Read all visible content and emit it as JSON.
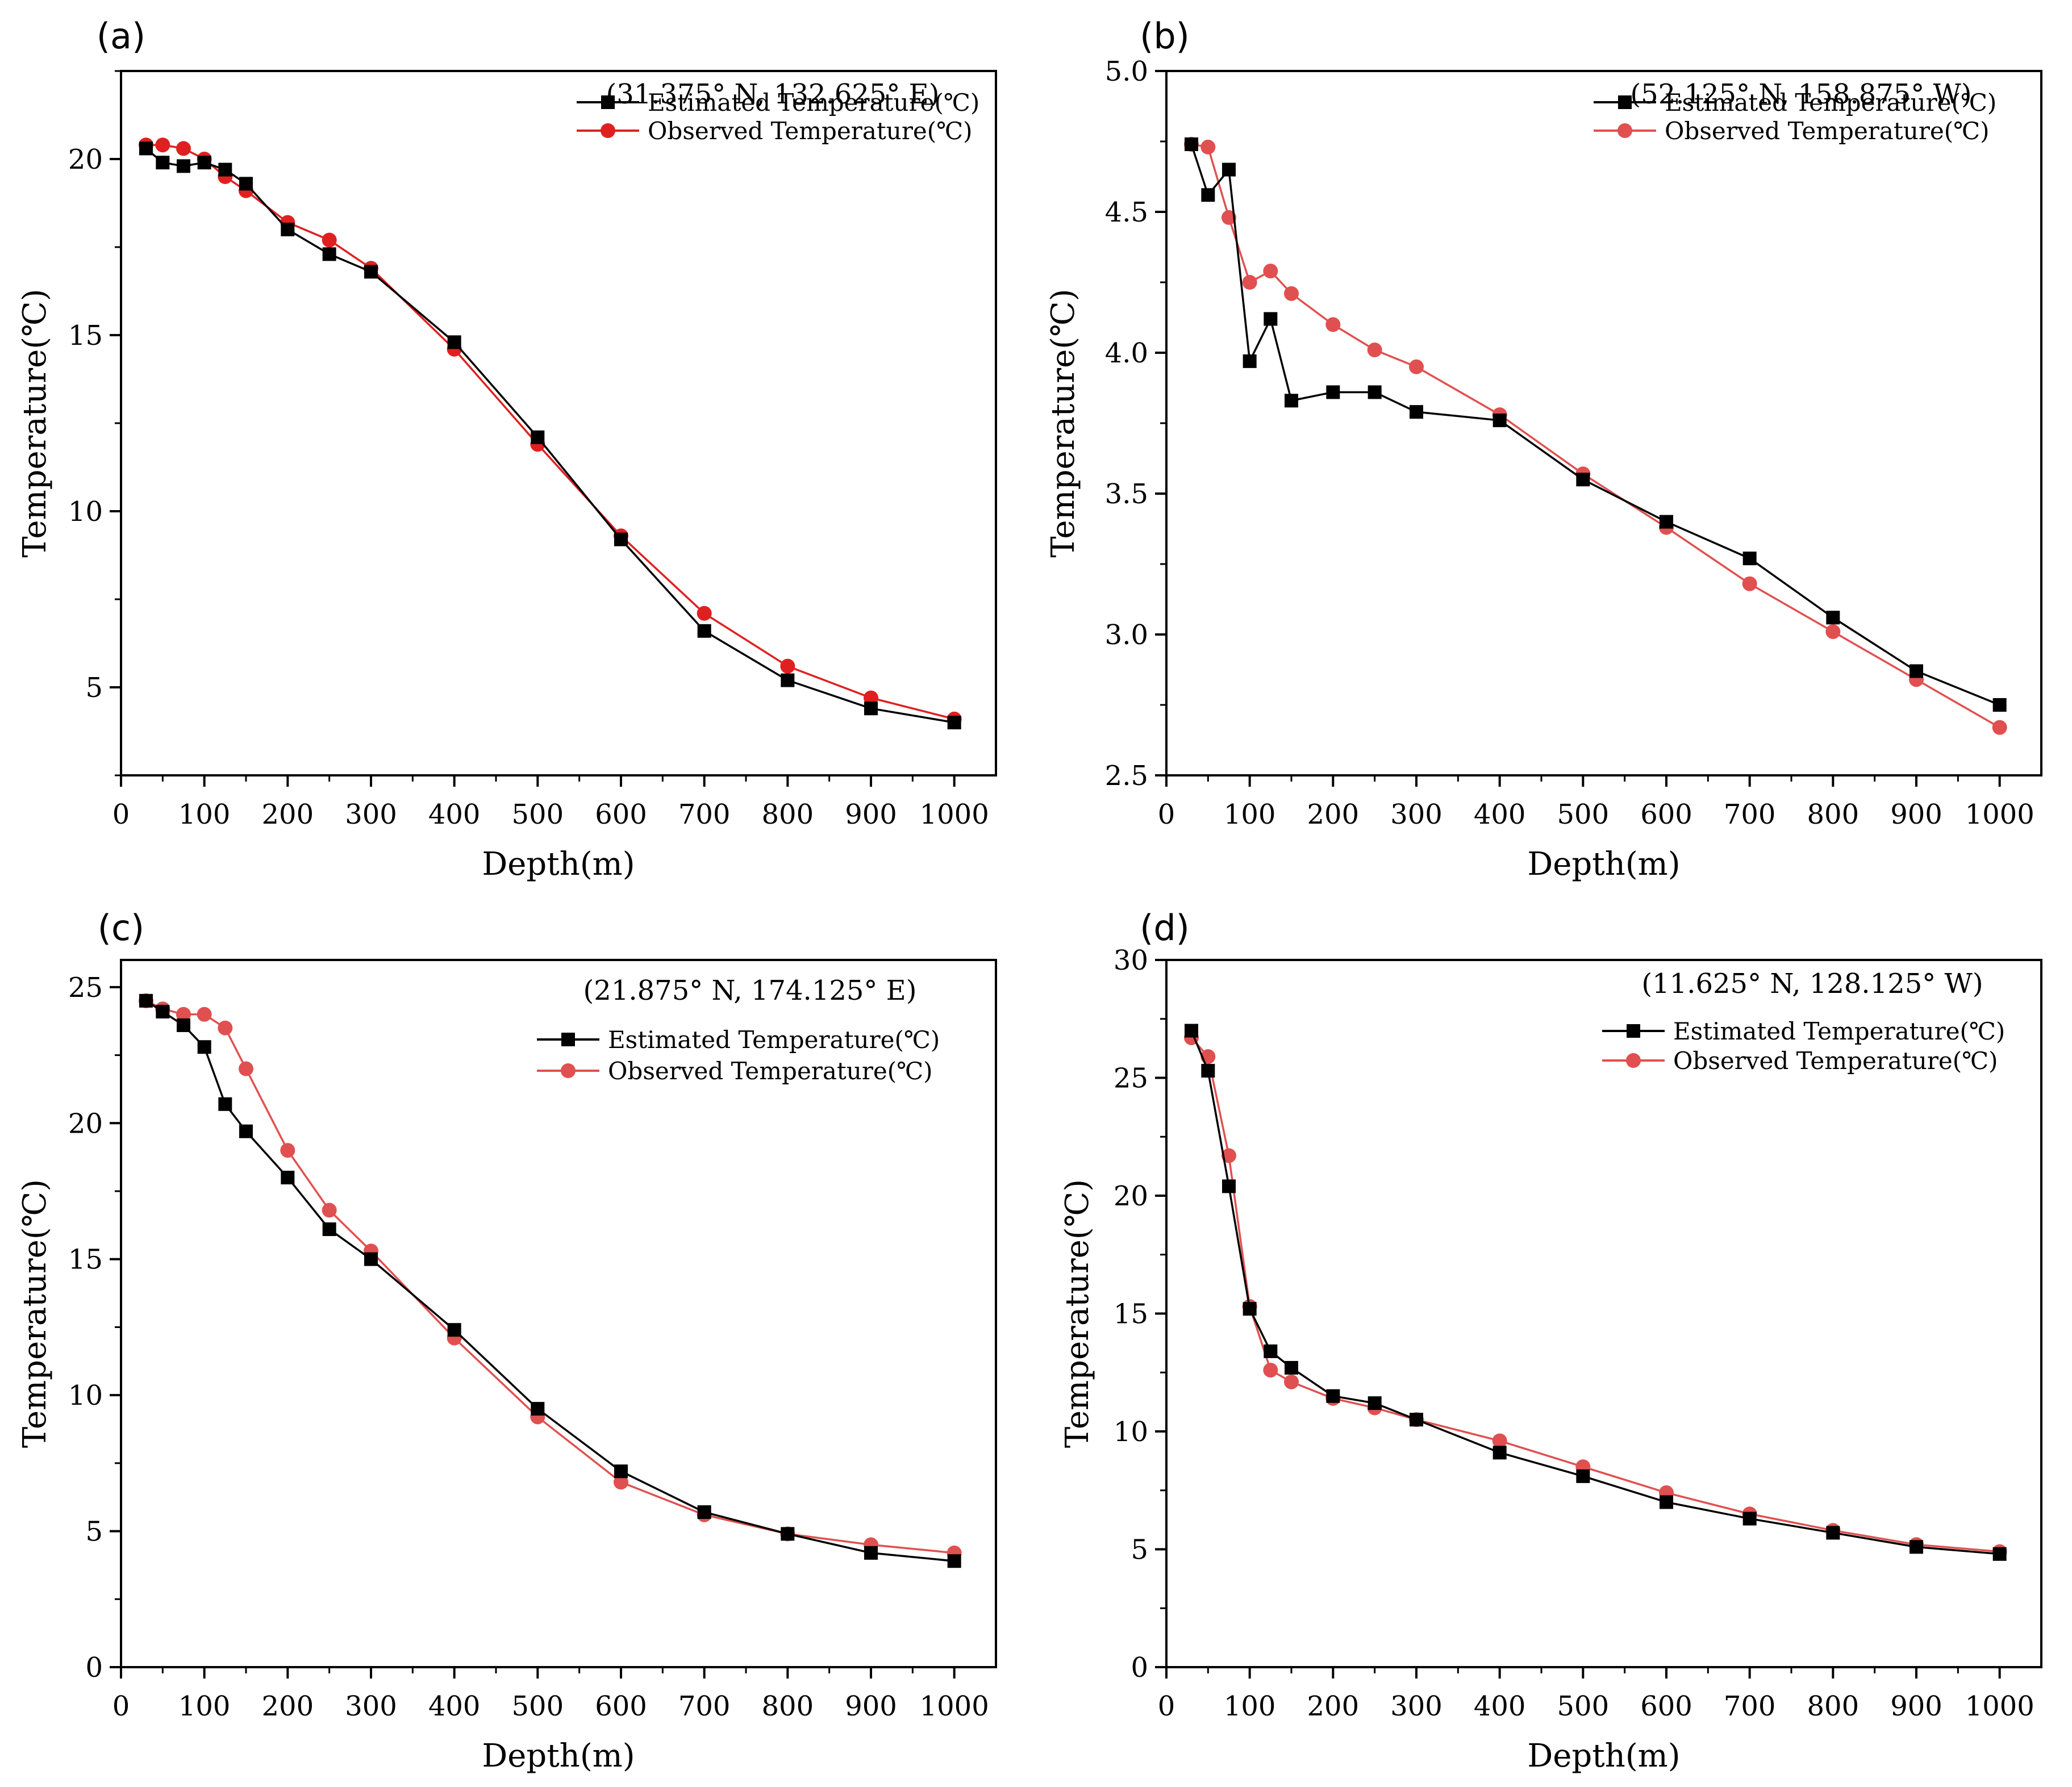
{
  "figure": {
    "x_label": "Depth(m)",
    "y_label": "Temperature(℃)",
    "legend_estimated": "Estimated Temperature(℃)",
    "legend_observed": "Observed Temperature(℃)",
    "colors": {
      "estimated": "#000000",
      "observed": "#e02020",
      "observed_b": "#e05050"
    }
  },
  "chart_data": [
    {
      "type": "line",
      "panel": "(a)",
      "title": "(31.375° N, 132.625° E)",
      "xlabel": "Depth(m)",
      "ylabel": "Temperature(℃)",
      "xlim": [
        0,
        1050
      ],
      "ylim": [
        2.5,
        22.5
      ],
      "xticks": [
        0,
        100,
        200,
        300,
        400,
        500,
        600,
        700,
        800,
        900,
        1000
      ],
      "yticks": [
        5,
        10,
        15,
        20
      ],
      "legend": "top-right",
      "series": [
        {
          "name": "Estimated Temperature(℃)",
          "marker": "square",
          "x": [
            30,
            50,
            75,
            100,
            125,
            150,
            200,
            250,
            300,
            400,
            500,
            600,
            700,
            800,
            900,
            1000
          ],
          "y": [
            20.3,
            19.9,
            19.8,
            19.9,
            19.7,
            19.3,
            18.0,
            17.3,
            16.8,
            14.8,
            12.1,
            9.2,
            6.6,
            5.2,
            4.4,
            4.0
          ]
        },
        {
          "name": "Observed Temperature(℃)",
          "marker": "circle",
          "x": [
            30,
            50,
            75,
            100,
            125,
            150,
            200,
            250,
            300,
            400,
            500,
            600,
            700,
            800,
            900,
            1000
          ],
          "y": [
            20.4,
            20.4,
            20.3,
            20.0,
            19.5,
            19.1,
            18.2,
            17.7,
            16.9,
            14.6,
            11.9,
            9.3,
            7.1,
            5.6,
            4.7,
            4.1
          ]
        }
      ]
    },
    {
      "type": "line",
      "panel": "(b)",
      "title": "(52.125° N, 158.875° W)",
      "xlabel": "Depth(m)",
      "ylabel": "Temperature(℃)",
      "xlim": [
        0,
        1050
      ],
      "ylim": [
        2.5,
        5.0
      ],
      "xticks": [
        0,
        100,
        200,
        300,
        400,
        500,
        600,
        700,
        800,
        900,
        1000
      ],
      "yticks": [
        2.5,
        3.0,
        3.5,
        4.0,
        4.5,
        5.0
      ],
      "ytick_labels": [
        "2.5",
        "3.0",
        "3.5",
        "4.0",
        "4.5",
        "5.0"
      ],
      "legend": "top-right",
      "series": [
        {
          "name": "Estimated Temperature(℃)",
          "marker": "square",
          "x": [
            30,
            50,
            75,
            100,
            125,
            150,
            200,
            250,
            300,
            400,
            500,
            600,
            700,
            800,
            900,
            1000
          ],
          "y": [
            4.74,
            4.56,
            4.65,
            3.97,
            4.12,
            3.83,
            3.86,
            3.86,
            3.79,
            3.76,
            3.55,
            3.4,
            3.27,
            3.06,
            2.87,
            2.75
          ]
        },
        {
          "name": "Observed Temperature(℃)",
          "marker": "circle",
          "x": [
            30,
            50,
            75,
            100,
            125,
            150,
            200,
            250,
            300,
            400,
            500,
            600,
            700,
            800,
            900,
            1000
          ],
          "y": [
            4.74,
            4.73,
            4.48,
            4.25,
            4.29,
            4.21,
            4.1,
            4.01,
            3.95,
            3.78,
            3.57,
            3.38,
            3.18,
            3.01,
            2.84,
            2.67
          ]
        }
      ]
    },
    {
      "type": "line",
      "panel": "(c)",
      "title": "(21.875° N, 174.125° E)",
      "xlabel": "Depth(m)",
      "ylabel": "Temperature(℃)",
      "xlim": [
        0,
        1050
      ],
      "ylim": [
        0,
        26
      ],
      "xticks": [
        0,
        100,
        200,
        300,
        400,
        500,
        600,
        700,
        800,
        900,
        1000
      ],
      "yticks": [
        0,
        5,
        10,
        15,
        20,
        25
      ],
      "legend": "top-right",
      "series": [
        {
          "name": "Estimated Temperature(℃)",
          "marker": "square",
          "x": [
            30,
            50,
            75,
            100,
            125,
            150,
            200,
            250,
            300,
            400,
            500,
            600,
            700,
            800,
            900,
            1000
          ],
          "y": [
            24.5,
            24.1,
            23.6,
            22.8,
            20.7,
            19.7,
            18.0,
            16.1,
            15.0,
            12.4,
            9.5,
            7.2,
            5.7,
            4.9,
            4.2,
            3.9
          ]
        },
        {
          "name": "Observed Temperature(℃)",
          "marker": "circle",
          "x": [
            30,
            50,
            75,
            100,
            125,
            150,
            200,
            250,
            300,
            400,
            500,
            600,
            700,
            800,
            900,
            1000
          ],
          "y": [
            24.5,
            24.2,
            24.0,
            24.0,
            23.5,
            22.0,
            19.0,
            16.8,
            15.3,
            12.1,
            9.2,
            6.8,
            5.6,
            4.9,
            4.5,
            4.2
          ]
        }
      ]
    },
    {
      "type": "line",
      "panel": "(d)",
      "title": "(11.625° N, 128.125° W)",
      "xlabel": "Depth(m)",
      "ylabel": "Temperature(℃)",
      "xlim": [
        0,
        1050
      ],
      "ylim": [
        0,
        30
      ],
      "xticks": [
        0,
        100,
        200,
        300,
        400,
        500,
        600,
        700,
        800,
        900,
        1000
      ],
      "yticks": [
        0,
        5,
        10,
        15,
        20,
        25,
        30
      ],
      "legend": "top-right",
      "series": [
        {
          "name": "Estimated Temperature(℃)",
          "marker": "square",
          "x": [
            30,
            50,
            75,
            100,
            125,
            150,
            200,
            250,
            300,
            400,
            500,
            600,
            700,
            800,
            900,
            1000
          ],
          "y": [
            27.0,
            25.3,
            20.4,
            15.2,
            13.4,
            12.7,
            11.5,
            11.2,
            10.5,
            9.1,
            8.1,
            7.0,
            6.3,
            5.7,
            5.1,
            4.8
          ]
        },
        {
          "name": "Observed Temperature(℃)",
          "marker": "circle",
          "x": [
            30,
            50,
            75,
            100,
            125,
            150,
            200,
            250,
            300,
            400,
            500,
            600,
            700,
            800,
            900,
            1000
          ],
          "y": [
            26.7,
            25.9,
            21.7,
            15.3,
            12.6,
            12.1,
            11.4,
            11.0,
            10.5,
            9.6,
            8.5,
            7.4,
            6.5,
            5.8,
            5.2,
            4.9
          ]
        }
      ]
    }
  ]
}
